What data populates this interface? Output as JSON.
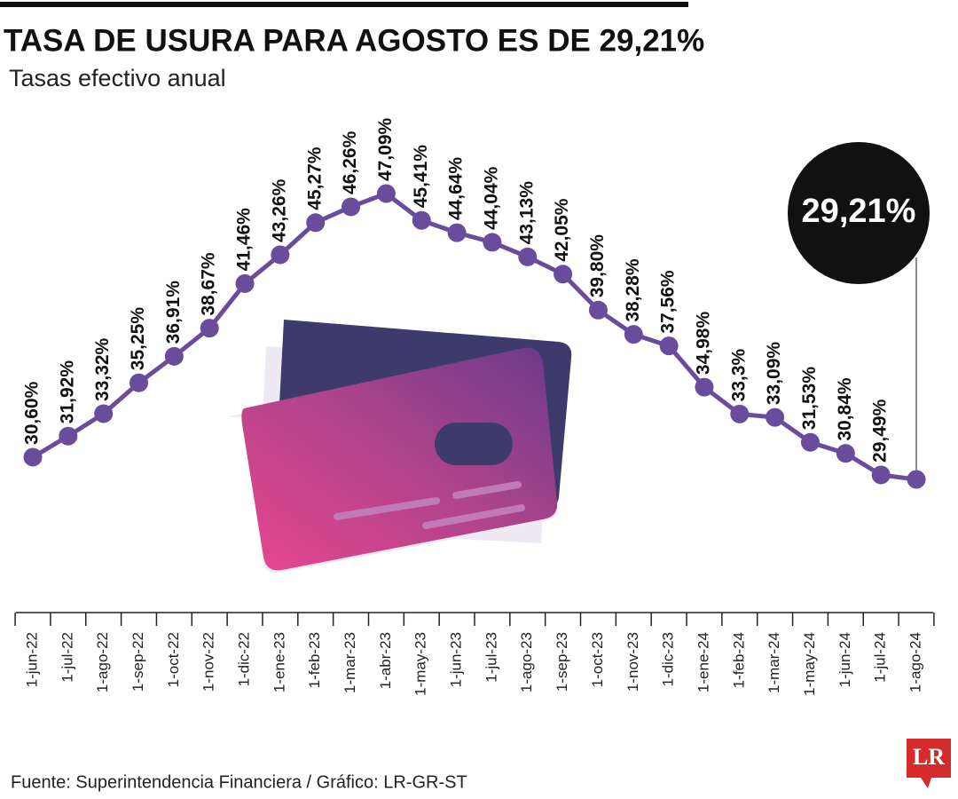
{
  "chart_data": {
    "type": "line",
    "title": "TASA DE USURA PARA AGOSTO ES DE 29,21%",
    "subtitle": "Tasas efectivo anual",
    "source": "Fuente: Superintendencia Financiera / Gráfico: LR-GR-ST",
    "logo": "LR",
    "categories": [
      "1-jun-22",
      "1-jul-22",
      "1-ago-22",
      "1-sep-22",
      "1-oct-22",
      "1-nov-22",
      "1-dic-22",
      "1-ene-23",
      "1-feb-23",
      "1-mar-23",
      "1-abr-23",
      "1-may-23",
      "1-jun-23",
      "1-jul-23",
      "1-ago-23",
      "1-sep-23",
      "1-oct-23",
      "1-nov-23",
      "1-dic-23",
      "1-ene-24",
      "1-feb-24",
      "1-mar-24",
      "1-may-24",
      "1-jun-24",
      "1-jul-24",
      "1-ago-24"
    ],
    "values": [
      30.6,
      31.92,
      33.32,
      35.25,
      36.91,
      38.67,
      41.46,
      43.26,
      45.27,
      46.26,
      47.09,
      45.41,
      44.64,
      44.04,
      43.13,
      42.05,
      39.8,
      38.28,
      37.56,
      34.98,
      33.3,
      33.09,
      31.53,
      30.84,
      29.49,
      29.21
    ],
    "value_labels": [
      "30,60%",
      "31,92%",
      "33,32%",
      "35,25%",
      "36,91%",
      "38,67%",
      "41,46%",
      "43,26%",
      "45,27%",
      "46,26%",
      "47,09%",
      "45,41%",
      "44,64%",
      "44,04%",
      "43,13%",
      "42,05%",
      "39,80%",
      "38,28%",
      "37,56%",
      "34,98%",
      "33,3%",
      "33,09%",
      "31,53%",
      "30,84%",
      "29,49%",
      "29,21%"
    ],
    "color": "#6a4c9c"
  }
}
